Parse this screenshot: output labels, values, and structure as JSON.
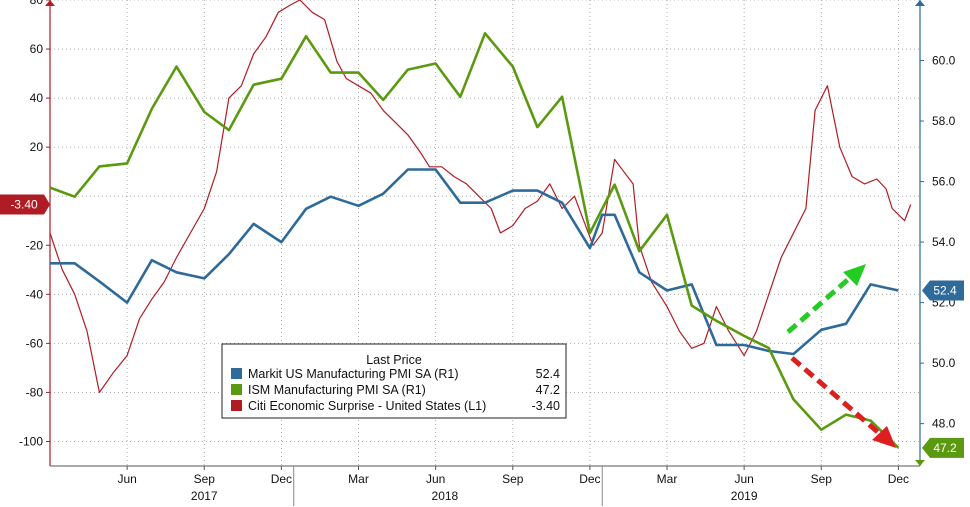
{
  "chart_data": {
    "type": "line",
    "left_axis": {
      "min": -110,
      "max": 80,
      "ticks": [
        80,
        60,
        40,
        20,
        -20,
        -40,
        -60,
        -80,
        -100
      ]
    },
    "right_axis": {
      "min": 46.6,
      "max": 62.0,
      "ticks": [
        60.0,
        58.0,
        56.0,
        54.0,
        52.0,
        50.0,
        48.0
      ]
    },
    "x_axis": {
      "month_labels": [
        {
          "label": "Jun",
          "t": 2017.42
        },
        {
          "label": "Sep",
          "t": 2017.67
        },
        {
          "label": "Dec",
          "t": 2017.92
        },
        {
          "label": "Mar",
          "t": 2018.17
        },
        {
          "label": "Jun",
          "t": 2018.42
        },
        {
          "label": "Sep",
          "t": 2018.67
        },
        {
          "label": "Dec",
          "t": 2018.92
        },
        {
          "label": "Mar",
          "t": 2019.17
        },
        {
          "label": "Jun",
          "t": 2019.42
        },
        {
          "label": "Sep",
          "t": 2019.67
        },
        {
          "label": "Dec",
          "t": 2019.92
        }
      ],
      "year_labels": [
        {
          "label": "2017",
          "t": 2017.67
        },
        {
          "label": "2018",
          "t": 2018.45
        },
        {
          "label": "2019",
          "t": 2019.42
        }
      ],
      "year_separators": [
        2017.96,
        2018.96
      ]
    },
    "legend": {
      "title": "Last Price",
      "entries": [
        {
          "name": "Markit US Manufacturing PMI SA  (R1)",
          "value": "52.4",
          "color": "#2e6a9a"
        },
        {
          "name": "ISM Manufacturing PMI SA  (R1)",
          "value": "47.2",
          "color": "#5b9a10"
        },
        {
          "name": "Citi Economic Surprise - United States  (L1)",
          "value": "-3.40",
          "color": "#b01c24"
        }
      ]
    },
    "flags": {
      "left": {
        "text": "-3.40",
        "value": -3.4,
        "color": "#b01c24"
      },
      "right_markit": {
        "text": "52.4",
        "value": 52.4,
        "color": "#2e6a9a"
      },
      "right_ism": {
        "text": "47.2",
        "value": 47.2,
        "color": "#5b9a10"
      }
    },
    "series": [
      {
        "name": "Markit US Manufacturing PMI SA  (R1)",
        "axis": "right",
        "color": "#2e6a9a",
        "points": [
          [
            2017.17,
            53.3
          ],
          [
            2017.25,
            53.3
          ],
          [
            2017.33,
            52.7
          ],
          [
            2017.42,
            52.0
          ],
          [
            2017.5,
            53.4
          ],
          [
            2017.58,
            53.0
          ],
          [
            2017.67,
            52.8
          ],
          [
            2017.75,
            53.6
          ],
          [
            2017.83,
            54.6
          ],
          [
            2017.92,
            54.0
          ],
          [
            2018.0,
            55.1
          ],
          [
            2018.08,
            55.5
          ],
          [
            2018.17,
            55.2
          ],
          [
            2018.25,
            55.6
          ],
          [
            2018.33,
            56.4
          ],
          [
            2018.42,
            56.4
          ],
          [
            2018.5,
            55.3
          ],
          [
            2018.58,
            55.3
          ],
          [
            2018.67,
            55.7
          ],
          [
            2018.75,
            55.7
          ],
          [
            2018.83,
            55.3
          ],
          [
            2018.92,
            53.8
          ],
          [
            2018.96,
            54.9
          ],
          [
            2019.0,
            54.9
          ],
          [
            2019.08,
            53.0
          ],
          [
            2019.17,
            52.4
          ],
          [
            2019.25,
            52.6
          ],
          [
            2019.33,
            50.6
          ],
          [
            2019.42,
            50.6
          ],
          [
            2019.5,
            50.4
          ],
          [
            2019.58,
            50.3
          ],
          [
            2019.67,
            51.1
          ],
          [
            2019.75,
            51.3
          ],
          [
            2019.83,
            52.6
          ],
          [
            2019.92,
            52.4
          ]
        ]
      },
      {
        "name": "ISM Manufacturing PMI SA  (R1)",
        "axis": "right",
        "color": "#5b9a10",
        "points": [
          [
            2017.17,
            55.8
          ],
          [
            2017.25,
            55.5
          ],
          [
            2017.33,
            56.5
          ],
          [
            2017.42,
            56.6
          ],
          [
            2017.5,
            58.4
          ],
          [
            2017.58,
            59.8
          ],
          [
            2017.67,
            58.3
          ],
          [
            2017.75,
            57.7
          ],
          [
            2017.83,
            59.2
          ],
          [
            2017.92,
            59.4
          ],
          [
            2018.0,
            60.8
          ],
          [
            2018.08,
            59.6
          ],
          [
            2018.17,
            59.6
          ],
          [
            2018.25,
            58.7
          ],
          [
            2018.33,
            59.7
          ],
          [
            2018.42,
            59.9
          ],
          [
            2018.5,
            58.8
          ],
          [
            2018.58,
            60.9
          ],
          [
            2018.67,
            59.8
          ],
          [
            2018.75,
            57.8
          ],
          [
            2018.83,
            58.8
          ],
          [
            2018.92,
            54.3
          ],
          [
            2019.0,
            55.9
          ],
          [
            2019.08,
            53.7
          ],
          [
            2019.17,
            54.9
          ],
          [
            2019.25,
            51.9
          ],
          [
            2019.33,
            51.4
          ],
          [
            2019.42,
            50.9
          ],
          [
            2019.5,
            50.5
          ],
          [
            2019.58,
            48.8
          ],
          [
            2019.67,
            47.8
          ],
          [
            2019.75,
            48.3
          ],
          [
            2019.83,
            48.1
          ],
          [
            2019.92,
            47.2
          ]
        ]
      },
      {
        "name": "Citi Economic Surprise - United States  (L1)",
        "axis": "left",
        "color": "#b01c24",
        "points": [
          [
            2017.17,
            -15
          ],
          [
            2017.21,
            -30
          ],
          [
            2017.25,
            -40
          ],
          [
            2017.29,
            -55
          ],
          [
            2017.33,
            -80
          ],
          [
            2017.375,
            -72
          ],
          [
            2017.42,
            -65
          ],
          [
            2017.46,
            -50
          ],
          [
            2017.5,
            -42
          ],
          [
            2017.54,
            -35
          ],
          [
            2017.58,
            -25
          ],
          [
            2017.625,
            -15
          ],
          [
            2017.67,
            -5
          ],
          [
            2017.71,
            10
          ],
          [
            2017.75,
            40
          ],
          [
            2017.79,
            45
          ],
          [
            2017.83,
            58
          ],
          [
            2017.87,
            65
          ],
          [
            2017.91,
            75
          ],
          [
            2017.95,
            78
          ],
          [
            2017.98,
            80
          ],
          [
            2018.02,
            75
          ],
          [
            2018.06,
            72
          ],
          [
            2018.1,
            55
          ],
          [
            2018.13,
            48
          ],
          [
            2018.17,
            45
          ],
          [
            2018.21,
            42
          ],
          [
            2018.25,
            35
          ],
          [
            2018.29,
            30
          ],
          [
            2018.33,
            25
          ],
          [
            2018.37,
            18
          ],
          [
            2018.4,
            12
          ],
          [
            2018.44,
            12
          ],
          [
            2018.48,
            8
          ],
          [
            2018.52,
            5
          ],
          [
            2018.56,
            0
          ],
          [
            2018.6,
            -5
          ],
          [
            2018.63,
            -15
          ],
          [
            2018.67,
            -12
          ],
          [
            2018.71,
            -5
          ],
          [
            2018.75,
            -2
          ],
          [
            2018.79,
            5
          ],
          [
            2018.83,
            -5
          ],
          [
            2018.87,
            0
          ],
          [
            2018.9,
            -10
          ],
          [
            2018.93,
            -20
          ],
          [
            2018.96,
            -15
          ],
          [
            2019.0,
            15
          ],
          [
            2019.03,
            10
          ],
          [
            2019.06,
            5
          ],
          [
            2019.08,
            -20
          ],
          [
            2019.12,
            -35
          ],
          [
            2019.17,
            -45
          ],
          [
            2019.21,
            -55
          ],
          [
            2019.25,
            -62
          ],
          [
            2019.29,
            -60
          ],
          [
            2019.33,
            -45
          ],
          [
            2019.37,
            -55
          ],
          [
            2019.42,
            -65
          ],
          [
            2019.46,
            -55
          ],
          [
            2019.5,
            -40
          ],
          [
            2019.54,
            -25
          ],
          [
            2019.58,
            -15
          ],
          [
            2019.62,
            -5
          ],
          [
            2019.65,
            35
          ],
          [
            2019.69,
            45
          ],
          [
            2019.73,
            20
          ],
          [
            2019.77,
            8
          ],
          [
            2019.81,
            5
          ],
          [
            2019.85,
            7
          ],
          [
            2019.88,
            3
          ],
          [
            2019.9,
            -5
          ],
          [
            2019.94,
            -10
          ],
          [
            2019.96,
            -3.4
          ]
        ]
      }
    ]
  }
}
